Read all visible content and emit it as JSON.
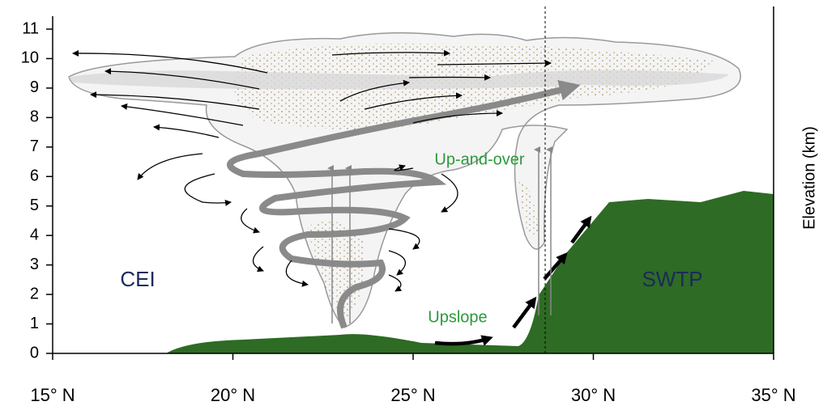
{
  "axes": {
    "x_ticks": [
      "15° N",
      "20° N",
      "25° N",
      "30° N",
      "35° N"
    ],
    "y_ticks": [
      0,
      1,
      2,
      3,
      4,
      5,
      6,
      7,
      8,
      9,
      10,
      11
    ],
    "y_label": "Elevation (km)"
  },
  "labels": {
    "left_region": "CEI",
    "right_region": "SWTP",
    "up_and_over": "Up-and-over",
    "upslope": "Upslope"
  }
}
